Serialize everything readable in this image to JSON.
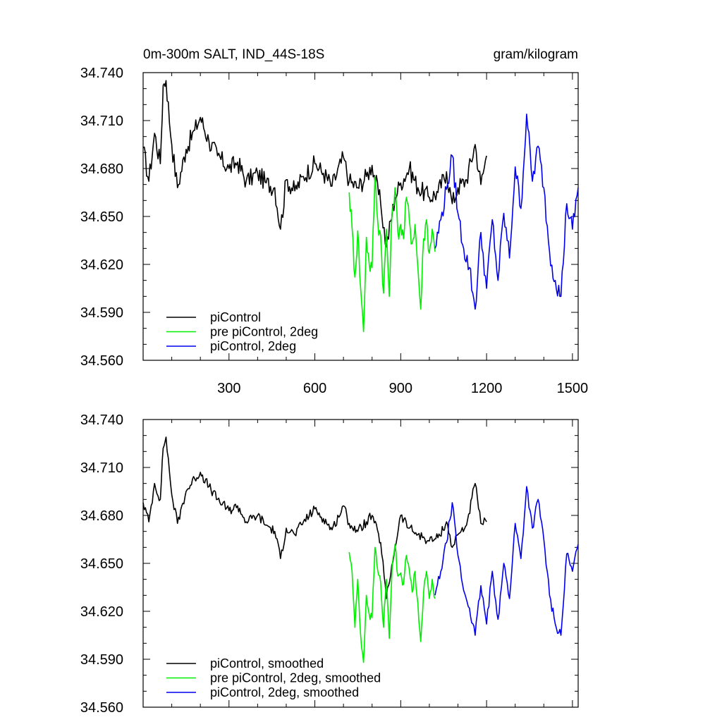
{
  "chart_data": [
    {
      "type": "line",
      "title": "0m-300m SALT, IND_44S-18S",
      "units": "gram/kilogram",
      "xlim": [
        0,
        1520
      ],
      "ylim": [
        34.56,
        34.74
      ],
      "x_ticks": [
        300,
        600,
        900,
        1200,
        1500
      ],
      "y_ticks": [
        "34.740",
        "34.710",
        "34.680",
        "34.650",
        "34.620",
        "34.590",
        "34.560"
      ],
      "legend_position": "bottom-left",
      "series": [
        {
          "name": "piControl",
          "color": "#000000",
          "x": [
            0,
            20,
            40,
            60,
            70,
            80,
            100,
            120,
            150,
            180,
            200,
            230,
            260,
            300,
            330,
            360,
            400,
            430,
            460,
            480,
            500,
            530,
            560,
            600,
            630,
            660,
            700,
            720,
            750,
            780,
            800,
            830,
            850,
            880,
            900,
            930,
            960,
            1000,
            1030,
            1060,
            1080,
            1100,
            1130,
            1160,
            1180,
            1200
          ],
          "values": [
            34.693,
            34.672,
            34.702,
            34.683,
            34.732,
            34.735,
            34.695,
            34.668,
            34.692,
            34.704,
            34.712,
            34.697,
            34.688,
            34.68,
            34.684,
            34.672,
            34.677,
            34.671,
            34.668,
            34.642,
            34.673,
            34.666,
            34.675,
            34.683,
            34.677,
            34.669,
            34.687,
            34.672,
            34.668,
            34.675,
            34.682,
            34.658,
            34.631,
            34.662,
            34.671,
            34.68,
            34.668,
            34.662,
            34.665,
            34.678,
            34.658,
            34.668,
            34.673,
            34.695,
            34.67,
            34.688
          ]
        },
        {
          "name": "pre piControl, 2deg",
          "color": "#00ee00",
          "x": [
            720,
            730,
            740,
            750,
            760,
            770,
            780,
            790,
            800,
            810,
            820,
            830,
            840,
            850,
            860,
            870,
            880,
            890,
            900,
            910,
            920,
            930,
            940,
            950,
            960,
            970,
            980,
            990,
            1000,
            1010,
            1020
          ],
          "values": [
            34.665,
            34.643,
            34.612,
            34.641,
            34.605,
            34.578,
            34.637,
            34.62,
            34.618,
            34.675,
            34.646,
            34.638,
            34.602,
            34.642,
            34.6,
            34.653,
            34.668,
            34.64,
            34.645,
            34.636,
            34.662,
            34.648,
            34.633,
            34.645,
            34.618,
            34.592,
            34.636,
            34.648,
            34.627,
            34.642,
            34.628
          ]
        },
        {
          "name": "piControl, 2deg",
          "color": "#0000ee",
          "x": [
            1020,
            1040,
            1060,
            1080,
            1100,
            1120,
            1140,
            1160,
            1180,
            1200,
            1220,
            1240,
            1260,
            1280,
            1300,
            1320,
            1340,
            1360,
            1380,
            1400,
            1420,
            1440,
            1460,
            1480,
            1500,
            1520
          ],
          "values": [
            34.63,
            34.648,
            34.667,
            34.688,
            34.652,
            34.63,
            34.618,
            34.592,
            34.64,
            34.605,
            34.648,
            34.61,
            34.652,
            34.624,
            34.681,
            34.655,
            34.714,
            34.672,
            34.694,
            34.668,
            34.628,
            34.61,
            34.6,
            34.658,
            34.642,
            34.668
          ]
        }
      ]
    },
    {
      "type": "line",
      "xlim": [
        0,
        1520
      ],
      "ylim": [
        34.56,
        34.74
      ],
      "y_ticks": [
        "34.740",
        "34.710",
        "34.680",
        "34.650",
        "34.620",
        "34.590",
        "34.560"
      ],
      "legend_position": "bottom-left",
      "series": [
        {
          "name": "piControl, smoothed",
          "color": "#000000",
          "x": [
            0,
            20,
            40,
            60,
            70,
            80,
            100,
            120,
            150,
            180,
            200,
            230,
            260,
            300,
            330,
            360,
            400,
            430,
            460,
            480,
            500,
            530,
            560,
            600,
            630,
            660,
            700,
            720,
            750,
            780,
            800,
            830,
            850,
            880,
            900,
            930,
            960,
            1000,
            1030,
            1060,
            1080,
            1100,
            1130,
            1160,
            1180,
            1200
          ],
          "values": [
            34.688,
            34.676,
            34.7,
            34.69,
            34.722,
            34.729,
            34.693,
            34.675,
            34.695,
            34.703,
            34.707,
            34.698,
            34.69,
            34.683,
            34.686,
            34.676,
            34.68,
            34.674,
            34.67,
            34.653,
            34.672,
            34.668,
            34.676,
            34.684,
            34.678,
            34.671,
            34.686,
            34.675,
            34.67,
            34.676,
            34.68,
            34.663,
            34.628,
            34.66,
            34.68,
            34.672,
            34.668,
            34.664,
            34.666,
            34.676,
            34.66,
            34.668,
            34.674,
            34.7,
            34.675,
            34.676
          ]
        },
        {
          "name": "pre piControl, 2deg, smoothed",
          "color": "#00ee00",
          "x": [
            720,
            730,
            740,
            750,
            760,
            770,
            780,
            790,
            800,
            810,
            820,
            830,
            840,
            850,
            860,
            870,
            880,
            890,
            900,
            910,
            920,
            930,
            940,
            950,
            960,
            970,
            980,
            990,
            1000,
            1010,
            1020
          ],
          "values": [
            34.657,
            34.645,
            34.61,
            34.64,
            34.605,
            34.588,
            34.63,
            34.618,
            34.616,
            34.66,
            34.645,
            34.638,
            34.61,
            34.64,
            34.603,
            34.648,
            34.662,
            34.642,
            34.644,
            34.637,
            34.655,
            34.646,
            34.632,
            34.645,
            34.625,
            34.601,
            34.632,
            34.645,
            34.628,
            34.64,
            34.628
          ]
        },
        {
          "name": "piControl, 2deg, smoothed",
          "color": "#0000ee",
          "x": [
            1020,
            1040,
            1060,
            1080,
            1100,
            1120,
            1140,
            1160,
            1180,
            1200,
            1220,
            1240,
            1260,
            1280,
            1300,
            1320,
            1340,
            1360,
            1380,
            1400,
            1420,
            1440,
            1460,
            1480,
            1500,
            1520
          ],
          "values": [
            34.63,
            34.645,
            34.663,
            34.688,
            34.655,
            34.633,
            34.622,
            34.605,
            34.636,
            34.612,
            34.645,
            34.615,
            34.65,
            34.628,
            34.675,
            34.653,
            34.698,
            34.672,
            34.69,
            34.665,
            34.63,
            34.612,
            34.605,
            34.656,
            34.645,
            34.662
          ]
        }
      ]
    }
  ]
}
